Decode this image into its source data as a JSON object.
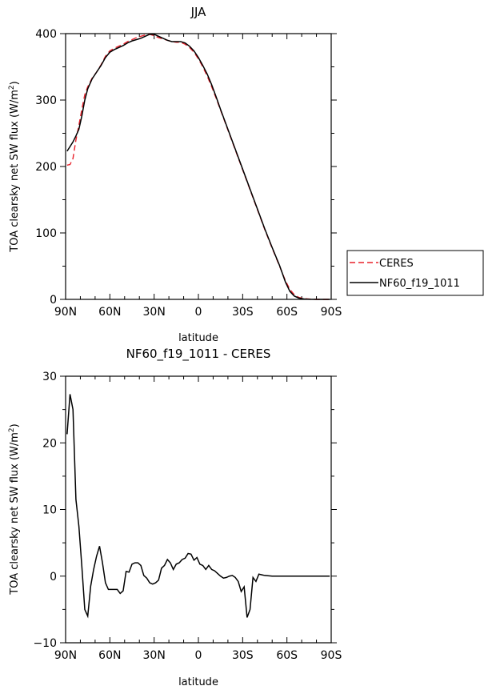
{
  "chart_data": [
    {
      "type": "line",
      "title": "JJA",
      "xlabel": "latitude",
      "ylabel": "TOA clearsky net SW flux (W/m",
      "ylabel_sup": "2",
      "ylabel_close": ")",
      "xlim": [
        90,
        -90
      ],
      "ylim": [
        0,
        400
      ],
      "xticks": [
        {
          "value": 90,
          "label": "90N"
        },
        {
          "value": 60,
          "label": "60N"
        },
        {
          "value": 30,
          "label": "30N"
        },
        {
          "value": 0,
          "label": "0"
        },
        {
          "value": -30,
          "label": "30S"
        },
        {
          "value": -60,
          "label": "60S"
        },
        {
          "value": -90,
          "label": "90S"
        }
      ],
      "yticks": [
        {
          "value": 0,
          "label": "0"
        },
        {
          "value": 100,
          "label": "100"
        },
        {
          "value": 200,
          "label": "200"
        },
        {
          "value": 300,
          "label": "300"
        },
        {
          "value": 400,
          "label": "400"
        }
      ],
      "grid": false,
      "legend_position": "right",
      "series": [
        {
          "name": "CERES",
          "color": "#e8202a",
          "dash": true,
          "points": [
            [
              89,
              202
            ],
            [
              87,
              203
            ],
            [
              85,
              212
            ],
            [
              83,
              240
            ],
            [
              81,
              262
            ],
            [
              79,
              286
            ],
            [
              77,
              308
            ],
            [
              75,
              320
            ],
            [
              72,
              333
            ],
            [
              69,
              342
            ],
            [
              66,
              353
            ],
            [
              63,
              366
            ],
            [
              60,
              374
            ],
            [
              57,
              378
            ],
            [
              54,
              381
            ],
            [
              51,
              384
            ],
            [
              48,
              388
            ],
            [
              45,
              391
            ],
            [
              42,
              394
            ],
            [
              39,
              396
            ],
            [
              36,
              398
            ],
            [
              33,
              399
            ],
            [
              30,
              397
            ],
            [
              27,
              394
            ],
            [
              24,
              392
            ],
            [
              21,
              390
            ],
            [
              18,
              388
            ],
            [
              15,
              387
            ],
            [
              12,
              387
            ],
            [
              9,
              384
            ],
            [
              6,
              379
            ],
            [
              3,
              372
            ],
            [
              0,
              362
            ],
            [
              -3,
              350
            ],
            [
              -6,
              336
            ],
            [
              -9,
              320
            ],
            [
              -12,
              303
            ],
            [
              -15,
              285
            ],
            [
              -20,
              255
            ],
            [
              -25,
              225
            ],
            [
              -30,
              195
            ],
            [
              -35,
              165
            ],
            [
              -40,
              135
            ],
            [
              -45,
              105
            ],
            [
              -50,
              77
            ],
            [
              -55,
              50
            ],
            [
              -59,
              28
            ],
            [
              -62,
              15
            ],
            [
              -65,
              7
            ],
            [
              -68,
              3
            ],
            [
              -72,
              1
            ],
            [
              -76,
              0.3
            ],
            [
              -80,
              0
            ],
            [
              -85,
              0
            ],
            [
              -89,
              0
            ]
          ]
        },
        {
          "name": "NF60_f19_1011",
          "color": "#000000",
          "dash": false,
          "points": [
            [
              89,
              223
            ],
            [
              87,
              230
            ],
            [
              85,
              237
            ],
            [
              83,
              246
            ],
            [
              81,
              256
            ],
            [
              79,
              276
            ],
            [
              77,
              300
            ],
            [
              75,
              317
            ],
            [
              72,
              332
            ],
            [
              69,
              342
            ],
            [
              66,
              352
            ],
            [
              63,
              364
            ],
            [
              60,
              372
            ],
            [
              57,
              376
            ],
            [
              54,
              379
            ],
            [
              51,
              382
            ],
            [
              48,
              386
            ],
            [
              45,
              389
            ],
            [
              42,
              391
            ],
            [
              39,
              393
            ],
            [
              36,
              396
            ],
            [
              33,
              399
            ],
            [
              30,
              399
            ],
            [
              27,
              396
            ],
            [
              24,
              393
            ],
            [
              21,
              390
            ],
            [
              18,
              388
            ],
            [
              15,
              388
            ],
            [
              12,
              388
            ],
            [
              9,
              386
            ],
            [
              6,
              381
            ],
            [
              3,
              374
            ],
            [
              0,
              364
            ],
            [
              -3,
              352
            ],
            [
              -6,
              339
            ],
            [
              -9,
              323
            ],
            [
              -12,
              305
            ],
            [
              -15,
              286
            ],
            [
              -20,
              256
            ],
            [
              -25,
              226
            ],
            [
              -30,
              196
            ],
            [
              -35,
              166
            ],
            [
              -40,
              136
            ],
            [
              -45,
              106
            ],
            [
              -50,
              78
            ],
            [
              -55,
              51
            ],
            [
              -59,
              26
            ],
            [
              -62,
              12
            ],
            [
              -65,
              5
            ],
            [
              -68,
              2
            ],
            [
              -72,
              0.5
            ],
            [
              -76,
              0.1
            ],
            [
              -80,
              0
            ],
            [
              -85,
              0
            ],
            [
              -89,
              0
            ]
          ]
        }
      ]
    },
    {
      "type": "line",
      "title": "NF60_f19_1011 - CERES",
      "xlabel": "latitude",
      "ylabel": "TOA clearsky net SW flux (W/m",
      "ylabel_sup": "2",
      "ylabel_close": ")",
      "xlim": [
        90,
        -90
      ],
      "ylim": [
        -10,
        30
      ],
      "xticks": [
        {
          "value": 90,
          "label": "90N"
        },
        {
          "value": 60,
          "label": "60N"
        },
        {
          "value": 30,
          "label": "30N"
        },
        {
          "value": 0,
          "label": "0"
        },
        {
          "value": -30,
          "label": "30S"
        },
        {
          "value": -60,
          "label": "60S"
        },
        {
          "value": -90,
          "label": "90S"
        }
      ],
      "yticks": [
        {
          "value": -10,
          "label": "−10"
        },
        {
          "value": 0,
          "label": "0"
        },
        {
          "value": 10,
          "label": "10"
        },
        {
          "value": 20,
          "label": "20"
        },
        {
          "value": 30,
          "label": "30"
        }
      ],
      "grid": false,
      "series": [
        {
          "color": "#000000",
          "dash": false,
          "points": [
            [
              89,
              21.3
            ],
            [
              87,
              27.3
            ],
            [
              85,
              25.0
            ],
            [
              83,
              11.5
            ],
            [
              81,
              7.5
            ],
            [
              79,
              1.5
            ],
            [
              77,
              -5.0
            ],
            [
              75,
              -6.0
            ],
            [
              73,
              -1.5
            ],
            [
              71,
              1.0
            ],
            [
              69,
              3.0
            ],
            [
              67,
              4.5
            ],
            [
              65,
              2.0
            ],
            [
              63,
              -1.0
            ],
            [
              61,
              -2.0
            ],
            [
              59,
              -2.0
            ],
            [
              57,
              -2.0
            ],
            [
              55,
              -2.0
            ],
            [
              53,
              -2.6
            ],
            [
              51,
              -2.2
            ],
            [
              49,
              0.7
            ],
            [
              47,
              0.6
            ],
            [
              45,
              1.8
            ],
            [
              43,
              2.0
            ],
            [
              41,
              2.0
            ],
            [
              39,
              1.6
            ],
            [
              37,
              0.1
            ],
            [
              35,
              -0.3
            ],
            [
              33,
              -1.0
            ],
            [
              31,
              -1.2
            ],
            [
              29,
              -1.0
            ],
            [
              27,
              -0.6
            ],
            [
              25,
              1.2
            ],
            [
              23,
              1.6
            ],
            [
              21,
              2.5
            ],
            [
              19,
              2.0
            ],
            [
              17,
              1.0
            ],
            [
              15,
              1.8
            ],
            [
              13,
              2.0
            ],
            [
              11,
              2.5
            ],
            [
              9,
              2.7
            ],
            [
              7,
              3.4
            ],
            [
              5,
              3.3
            ],
            [
              3,
              2.4
            ],
            [
              1,
              2.8
            ],
            [
              -1,
              1.8
            ],
            [
              -3,
              1.6
            ],
            [
              -5,
              1.0
            ],
            [
              -7,
              1.6
            ],
            [
              -9,
              1.0
            ],
            [
              -11,
              0.8
            ],
            [
              -13,
              0.4
            ],
            [
              -15,
              0.0
            ],
            [
              -17,
              -0.3
            ],
            [
              -19,
              -0.2
            ],
            [
              -21,
              0.0
            ],
            [
              -23,
              0.1
            ],
            [
              -25,
              -0.2
            ],
            [
              -27,
              -0.8
            ],
            [
              -29,
              -2.3
            ],
            [
              -31,
              -1.6
            ],
            [
              -33,
              -6.2
            ],
            [
              -35,
              -5.0
            ],
            [
              -37,
              -0.2
            ],
            [
              -39,
              -0.8
            ],
            [
              -41,
              0.3
            ],
            [
              -43,
              0.2
            ],
            [
              -45,
              0.1
            ],
            [
              -50,
              0.0
            ],
            [
              -55,
              0.0
            ],
            [
              -60,
              0.0
            ],
            [
              -65,
              0.0
            ],
            [
              -70,
              0.0
            ],
            [
              -75,
              0.0
            ],
            [
              -80,
              0.0
            ],
            [
              -85,
              0.0
            ],
            [
              -89,
              0.0
            ]
          ]
        }
      ]
    }
  ]
}
